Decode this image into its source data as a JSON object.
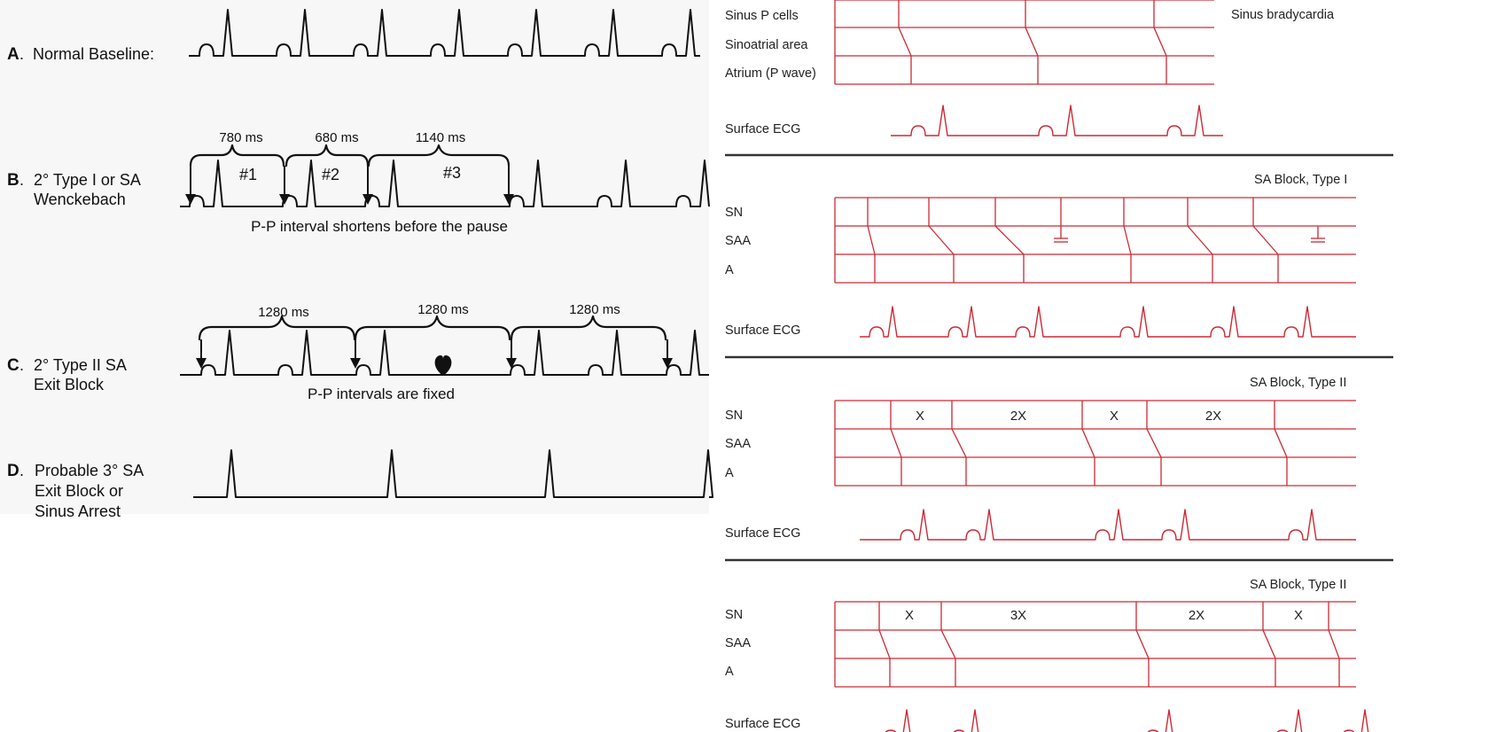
{
  "left": {
    "A": {
      "letter": "A",
      "text": "Normal Baseline:"
    },
    "B": {
      "letter": "B",
      "line1": "2° Type I or SA",
      "line2": "Wenckebach",
      "intervals": [
        "780 ms",
        "680 ms",
        "1140 ms"
      ],
      "beat_labels": [
        "#1",
        "#2",
        "#3"
      ],
      "note": "P-P interval shortens before the pause"
    },
    "C": {
      "letter": "C",
      "line1": "2° Type II  SA",
      "line2": "Exit Block",
      "intervals": [
        "1280 ms",
        "1280 ms",
        "1280 ms"
      ],
      "note": "P-P intervals are fixed",
      "symbol": "heart"
    },
    "D": {
      "letter": "D",
      "line1": "Probable 3° SA",
      "line2": "Exit Block or",
      "line3": "Sinus Arrest"
    }
  },
  "right": {
    "p1": {
      "title": "Sinus bradycardia",
      "rows": [
        "Sinus P cells",
        "Sinoatrial area",
        "Atrium (P wave)"
      ],
      "ecg": "Surface ECG"
    },
    "p2": {
      "title": "SA Block, Type I",
      "rows": [
        "SN",
        "SAA",
        "A"
      ],
      "ecg": "Surface ECG"
    },
    "p3": {
      "title": "SA Block, Type II",
      "rows": [
        "SN",
        "SAA",
        "A"
      ],
      "cells": [
        "X",
        "2X",
        "X",
        "2X"
      ],
      "ecg": "Surface ECG"
    },
    "p4": {
      "title": "SA Block, Type II",
      "rows": [
        "SN",
        "SAA",
        "A"
      ],
      "cells": [
        "X",
        "3X",
        "2X",
        "X"
      ],
      "ecg": "Surface ECG"
    }
  },
  "colors": {
    "ladder": "#cc2a36",
    "ink": "#111111",
    "left_bg": "#f7f7f7"
  }
}
